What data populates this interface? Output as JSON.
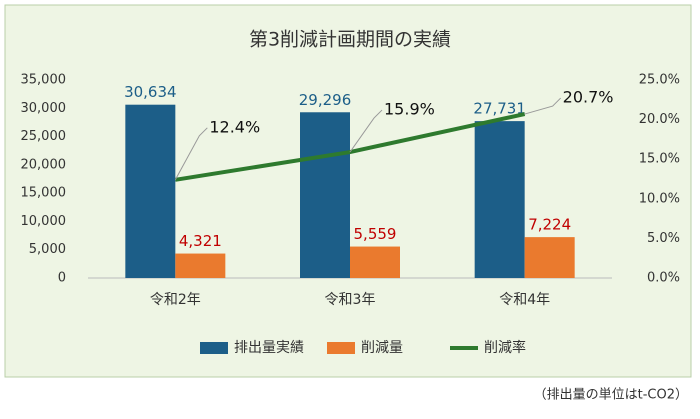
{
  "chart_data": {
    "type": "bar",
    "title": "第3削減計画期間の実績",
    "categories": [
      "令和2年",
      "令和3年",
      "令和4年"
    ],
    "series": [
      {
        "name": "排出量実績",
        "type": "bar",
        "color": "#1c5e88",
        "label_color": "#1c5e88",
        "values": [
          30634,
          29296,
          27731
        ],
        "value_labels": [
          "30,634",
          "29,296",
          "27,731"
        ]
      },
      {
        "name": "削減量",
        "type": "bar",
        "color": "#ea7a2e",
        "label_color": "#c00000",
        "values": [
          4321,
          5559,
          7224
        ],
        "value_labels": [
          "4,321",
          "5,559",
          "7,224"
        ]
      },
      {
        "name": "削減率",
        "type": "line",
        "axis": "y2",
        "color": "#2e7a2e",
        "label_color": "#111111",
        "values": [
          12.4,
          15.9,
          20.7
        ],
        "value_labels": [
          "12.4%",
          "15.9%",
          "20.7%"
        ]
      }
    ],
    "ylim": [
      0,
      35000
    ],
    "yticks": [
      0,
      {
        "value": 5000,
        "label": "5,000"
      },
      {
        "value": 10000,
        "label": "10,000"
      },
      {
        "value": 15000,
        "label": "15,000"
      },
      {
        "value": 20000,
        "label": "20,000"
      },
      {
        "value": 25000,
        "label": "25,000"
      },
      {
        "value": 30000,
        "label": "30,000"
      },
      {
        "value": 35000,
        "label": "35,000"
      }
    ],
    "y2lim": [
      0,
      25
    ],
    "y2ticks": [
      {
        "value": 0,
        "label": "0.0%"
      },
      {
        "value": 5,
        "label": "5.0%"
      },
      {
        "value": 10,
        "label": "10.0%"
      },
      {
        "value": 15,
        "label": "15.0%"
      },
      {
        "value": 20,
        "label": "20.0%"
      },
      {
        "value": 25,
        "label": "25.0%"
      }
    ],
    "grid": false,
    "legend": "bottom",
    "note": "（排出量の単位はt-CO2）"
  }
}
